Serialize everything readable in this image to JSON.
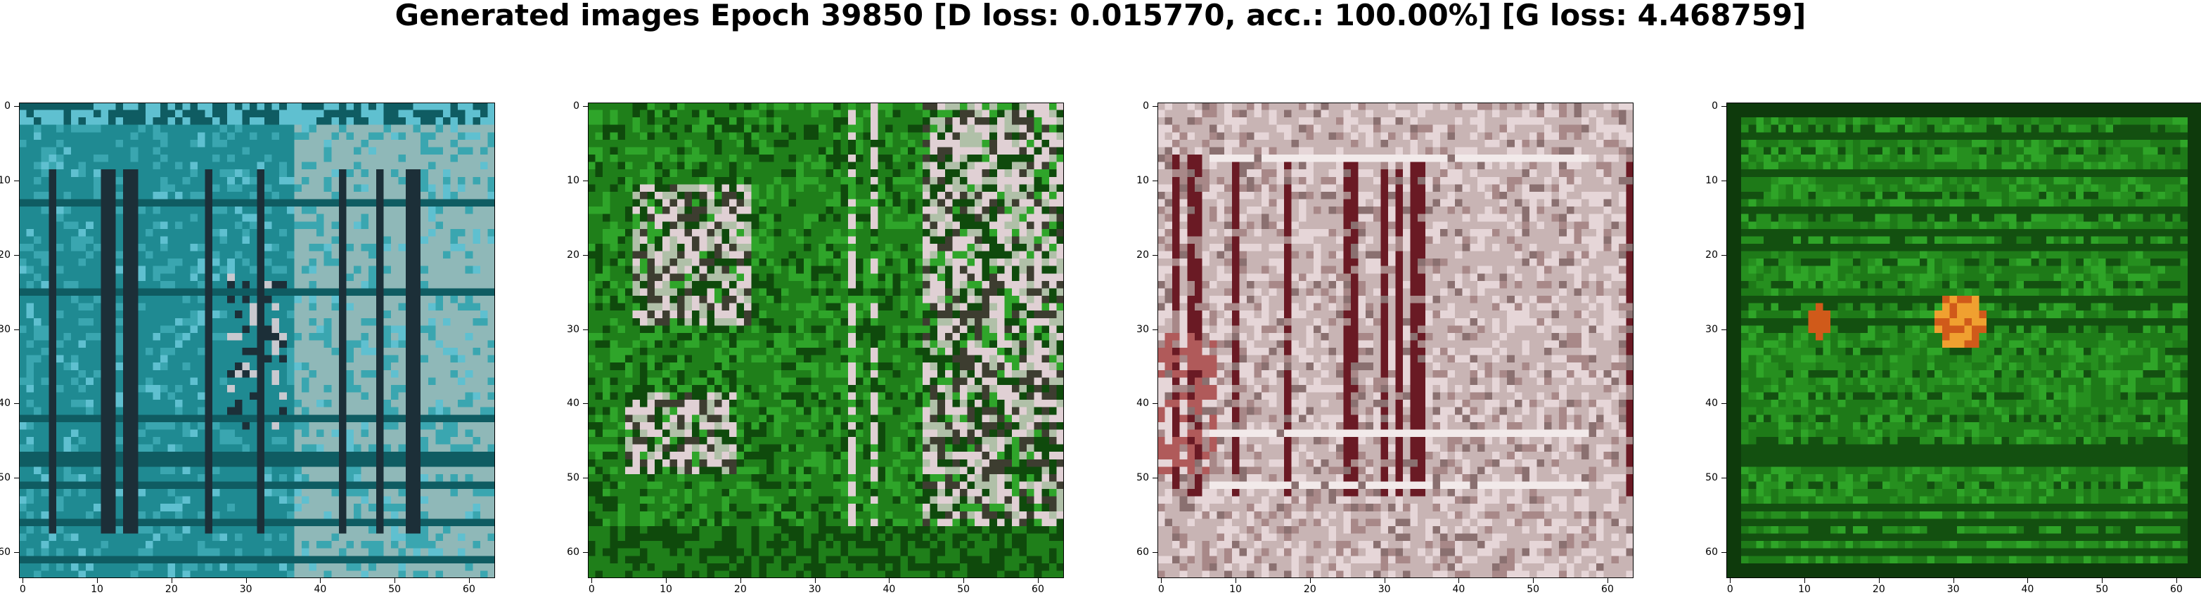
{
  "title": "Generated images Epoch 39850 [D loss: 0.015770, acc.: 100.00%] [G loss: 4.468759]",
  "axes": {
    "x_ticks": [
      "0",
      "10",
      "20",
      "30",
      "40",
      "50",
      "60"
    ],
    "y_ticks": [
      "0",
      "10",
      "20",
      "30",
      "40",
      "50",
      "60"
    ],
    "pixel_grid": 64
  },
  "panels": [
    {
      "name": "generated-image-1",
      "palette": [
        "#1f8a92",
        "#3aa6b0",
        "#0f5c62",
        "#8fb8b8",
        "#c9c9cf",
        "#1c2f38",
        "#5fc0d0"
      ],
      "theme": "teal-structure"
    },
    {
      "name": "generated-image-2",
      "palette": [
        "#1f7f1a",
        "#2fa52a",
        "#0f4a0c",
        "#b0c0a8",
        "#e0d0d4",
        "#3d3d30",
        "#a8d890"
      ],
      "theme": "green-mixed"
    },
    {
      "name": "generated-image-3",
      "palette": [
        "#c8b4b4",
        "#e6d6d8",
        "#a88888",
        "#6a1a24",
        "#f2eaea",
        "#b05a5a",
        "#8a7070"
      ],
      "theme": "pink-structure"
    },
    {
      "name": "generated-image-4",
      "palette": [
        "#1e7a18",
        "#268f1f",
        "#135010",
        "#2fa528",
        "#0e3a0c",
        "#d05a1a",
        "#f0a030"
      ],
      "theme": "green-dark"
    }
  ]
}
